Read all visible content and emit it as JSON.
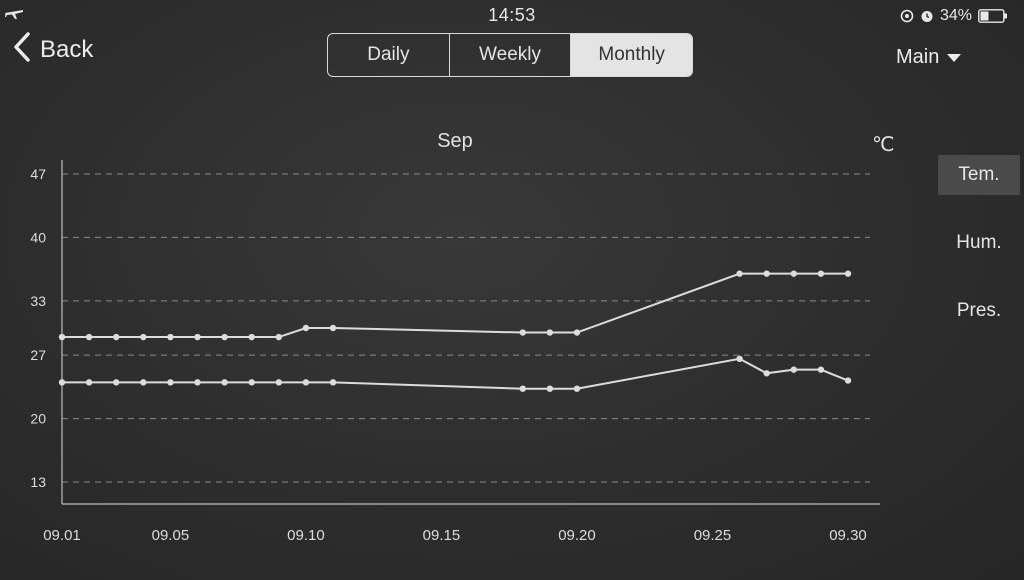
{
  "status_bar": {
    "time": "14:53",
    "battery": "34%"
  },
  "nav": {
    "back_label": "Back",
    "tabs": [
      {
        "label": "Daily",
        "selected": false
      },
      {
        "label": "Weekly",
        "selected": false
      },
      {
        "label": "Monthly",
        "selected": true
      }
    ],
    "dropdown_label": "Main"
  },
  "metrics": [
    {
      "label": "Tem.",
      "selected": true
    },
    {
      "label": "Hum.",
      "selected": false
    },
    {
      "label": "Pres.",
      "selected": false
    }
  ],
  "icons": {
    "airplane": "airplane-icon",
    "back": "chevron-left-icon",
    "dropdown": "caret-down-icon",
    "location": "location-icon",
    "alarm": "alarm-icon",
    "battery": "battery-icon"
  },
  "colors": {
    "background": "#2d2d2d",
    "line": "#dcdcdc",
    "grid": "#8a8a8a",
    "selected_tab": "#e4e4e4",
    "selected_metric": "#4a4a4a"
  },
  "chart_data": {
    "type": "line",
    "title": "Sep",
    "unit": "℃",
    "x_tick_labels": [
      "09.01",
      "09.05",
      "09.10",
      "09.15",
      "09.20",
      "09.25",
      "09.30"
    ],
    "x_ticks": [
      1,
      5,
      10,
      15,
      20,
      25,
      30
    ],
    "xlim": [
      1,
      30
    ],
    "y_ticks": [
      13,
      20,
      27,
      33,
      40,
      47
    ],
    "ylim": [
      13,
      47
    ],
    "grid": "horizontal dashed",
    "series": [
      {
        "x": [
          1,
          2,
          3,
          4,
          5,
          6,
          7,
          8,
          9,
          10,
          11,
          18,
          19,
          20,
          26,
          27,
          28,
          29,
          30
        ],
        "y": [
          29,
          29,
          29,
          29,
          29,
          29,
          29,
          29,
          29,
          30,
          30,
          29.5,
          29.5,
          29.5,
          36,
          36,
          36,
          36,
          36
        ]
      },
      {
        "x": [
          1,
          2,
          3,
          4,
          5,
          6,
          7,
          8,
          9,
          10,
          11,
          18,
          19,
          20,
          26,
          27,
          28,
          29,
          30
        ],
        "y": [
          24,
          24,
          24,
          24,
          24,
          24,
          24,
          24,
          24,
          24,
          24,
          23.3,
          23.3,
          23.3,
          26.6,
          25,
          25.4,
          25.4,
          24.2
        ]
      }
    ]
  }
}
